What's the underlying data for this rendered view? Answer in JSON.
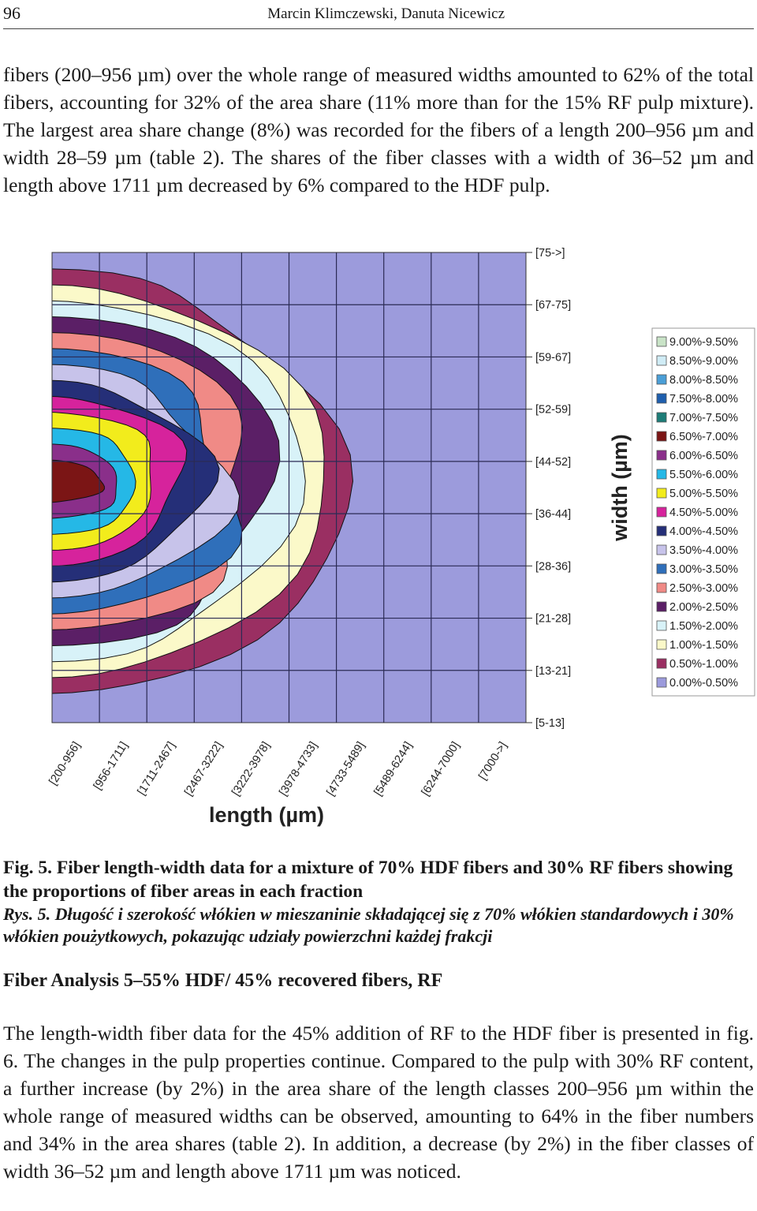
{
  "header": {
    "page_number": "96",
    "running_head": "Marcin Klimczewski, Danuta Nicewicz"
  },
  "paragraph_1": "fibers (200–956 µm) over the whole range of measured widths amounted to 62% of the total fibers, accounting for 32% of the area share (11% more than for the 15% RF pulp mixture). The largest area share change (8%) was recorded for the fibers of a length 200–956 µm and width 28–59 µm (table 2). The shares of the fiber classes with a width of 36–52 µm and length above 1711 µm decreased by 6% compared to the HDF pulp.",
  "chart_data": {
    "type": "heatmap",
    "xlabel": "length (µm)",
    "ylabel": "width (µm)",
    "x_categories": [
      "[200-956]",
      "[956-1711]",
      "[1711-2467]",
      "[2467-3222]",
      "[3222-3978]",
      "[3978-4733]",
      "[4733-5489]",
      "[5489-6244]",
      "[6244-7000]",
      "[7000->]"
    ],
    "y_categories": [
      "[75->]",
      "[67-75]",
      "[59-67]",
      "[52-59]",
      "[44-52]",
      "[36-44]",
      "[28-36]",
      "[21-28]",
      "[13-21]",
      "[5-13]"
    ],
    "legend": [
      {
        "label": "9.00%-9.50%",
        "color": "#c9e3c7"
      },
      {
        "label": "8.50%-9.00%",
        "color": "#d0ecf6"
      },
      {
        "label": "8.00%-8.50%",
        "color": "#4b9fd7"
      },
      {
        "label": "7.50%-8.00%",
        "color": "#1f5fae"
      },
      {
        "label": "7.00%-7.50%",
        "color": "#1e7d78"
      },
      {
        "label": "6.50%-7.00%",
        "color": "#7b1515"
      },
      {
        "label": "6.00%-6.50%",
        "color": "#8a2f8a"
      },
      {
        "label": "5.50%-6.00%",
        "color": "#25b8e6"
      },
      {
        "label": "5.00%-5.50%",
        "color": "#f2ec1c"
      },
      {
        "label": "4.50%-5.00%",
        "color": "#d6239c"
      },
      {
        "label": "4.00%-4.50%",
        "color": "#252f78"
      },
      {
        "label": "3.50%-4.00%",
        "color": "#c7c3ea"
      },
      {
        "label": "3.00%-3.50%",
        "color": "#2f6fba"
      },
      {
        "label": "2.50%-3.00%",
        "color": "#f08a86"
      },
      {
        "label": "2.00%-2.50%",
        "color": "#5b1f66"
      },
      {
        "label": "1.50%-2.00%",
        "color": "#d8f2f8"
      },
      {
        "label": "1.00%-1.50%",
        "color": "#fbf9c9"
      },
      {
        "label": "0.50%-1.00%",
        "color": "#9a2f62"
      },
      {
        "label": "0.00%-0.50%",
        "color": "#9c9bdc"
      }
    ],
    "contour_levels_at_peak_fraction": [
      "0.50%-1.00%",
      "1.00%-1.50%",
      "1.50%-2.00%",
      "2.00%-2.50%",
      "2.50%-3.00%",
      "3.00%-3.50%",
      "3.50%-4.00%",
      "4.00%-4.50%",
      "4.50%-5.00%",
      "5.00%-5.50%",
      "5.50%-6.00%",
      "6.00%-6.50%",
      "6.50%-7.00%"
    ],
    "peak": {
      "length": "[200-956]",
      "width": "[44-52]",
      "range": "6.50%-7.00%"
    },
    "grid": true,
    "legend_placement": "right"
  },
  "caption_en": "Fig. 5. Fiber length-width data for a mixture of 70% HDF fibers and 30% RF fibers showing the proportions of fiber areas in each fraction",
  "caption_pl": "Rys. 5. Długość i szerokość włókien w mieszaninie składającej się z 70% włókien standardowych i 30% włókien poużytkowych, pokazując udziały powierzchni każdej frakcji",
  "section_heading": "Fiber Analysis 5–55% HDF/ 45% recovered fibers, RF",
  "paragraph_2": "The length-width fiber data for the 45% addition of RF to the HDF fiber is presented in fig. 6. The changes in the pulp properties continue. Compared to the pulp with 30% RF content, a further increase (by 2%) in the area share of the length classes 200–956 µm within the whole range of measured widths can be observed, amounting to 64% in the fiber numbers and 34% in the area shares (table 2). In addition, a decrease (by 2%) in the fiber classes of width 36–52 µm and length above 1711 µm was noticed."
}
